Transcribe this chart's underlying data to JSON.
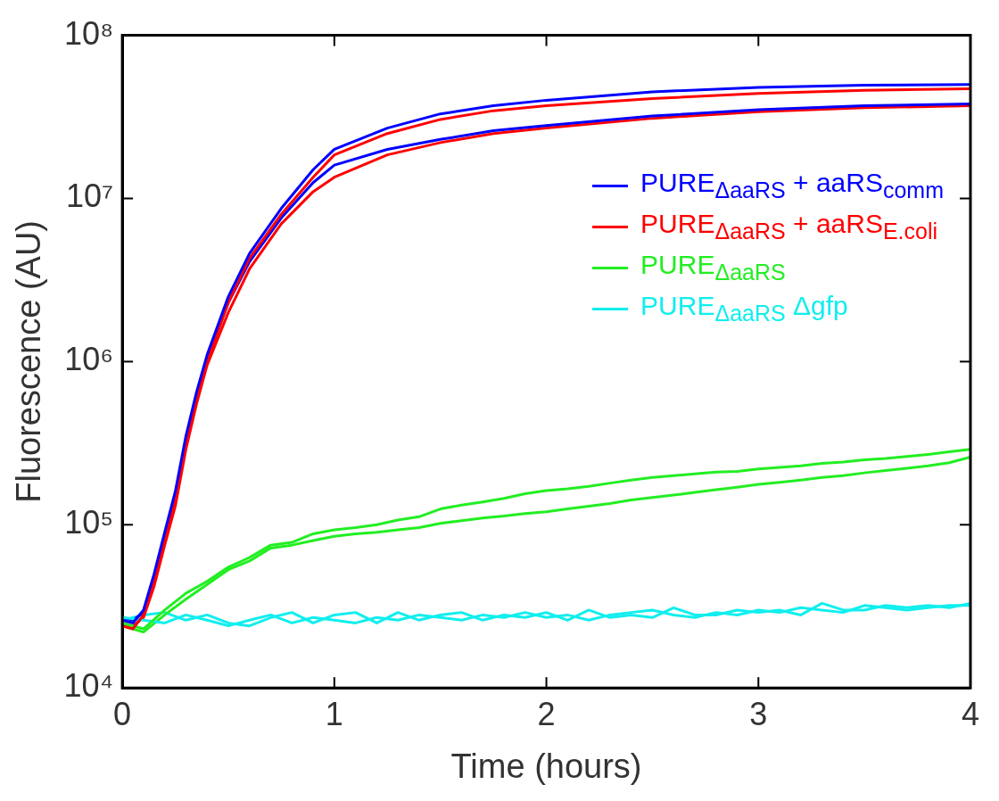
{
  "chart_data": {
    "type": "line",
    "xlabel": "Time (hours)",
    "ylabel": "Fluorescence (AU)",
    "x": [
      0,
      0.05,
      0.1,
      0.15,
      0.2,
      0.25,
      0.3,
      0.35,
      0.4,
      0.5,
      0.6,
      0.75,
      0.9,
      1,
      1.25,
      1.5,
      1.75,
      2,
      2.5,
      3,
      3.5,
      4
    ],
    "xlim": [
      0,
      4
    ],
    "xticks": [
      0,
      1,
      2,
      3,
      4
    ],
    "ylim": [
      10000,
      100000000
    ],
    "yticks": [
      {
        "value": 10000,
        "label": "10⁴"
      },
      {
        "value": 100000,
        "label": "10⁵"
      },
      {
        "value": 1000000,
        "label": "10⁶"
      },
      {
        "value": 10000000,
        "label": "10⁷"
      },
      {
        "value": 100000000,
        "label": "10⁸"
      }
    ],
    "log": "y",
    "grid": false,
    "legend": "right",
    "marker": "none",
    "line_style": "solid",
    "series": [
      {
        "name": "PURE$_{ΔaaRS}$ + aaRS$_{comm}$",
        "color": "#0000ff",
        "values": [
          26000,
          25000,
          30000,
          50000,
          90000,
          160000,
          350000,
          650000,
          1100000,
          2500000,
          4600000,
          8700000,
          15000000,
          20000000,
          27000000,
          33000000,
          37000000,
          40000000,
          45000000,
          48000000,
          49500000,
          50000000
        ]
      },
      {
        "name": "PURE$_{ΔaaRS}$ + aaRS$_{E.coli}$",
        "color": "#ff0000",
        "values": [
          24000,
          23000,
          28000,
          45000,
          80000,
          140000,
          310000,
          600000,
          1000000,
          2300000,
          4300000,
          8000000,
          13500000,
          18500000,
          25000000,
          30500000,
          34500000,
          37000000,
          41000000,
          44000000,
          46000000,
          47000000
        ]
      },
      {
        "name": "PURE$_{ΔaaRS}$",
        "color": "#22ee22",
        "x": [
          0,
          0.1,
          0.2,
          0.3,
          0.4,
          0.5,
          0.6,
          0.7,
          0.8,
          0.9,
          1,
          1.1,
          1.2,
          1.3,
          1.4,
          1.5,
          1.6,
          1.7,
          1.8,
          1.9,
          2,
          2.1,
          2.2,
          2.3,
          2.4,
          2.5,
          2.6,
          2.7,
          2.8,
          2.9,
          3,
          3.1,
          3.2,
          3.3,
          3.4,
          3.5,
          3.6,
          3.7,
          3.8,
          3.9,
          4
        ],
        "values": [
          25000,
          23000,
          30000,
          38000,
          45000,
          55000,
          63000,
          75000,
          78000,
          88000,
          93000,
          96000,
          100000,
          107000,
          112000,
          125000,
          132000,
          138000,
          145000,
          155000,
          162000,
          166000,
          172000,
          180000,
          188000,
          195000,
          200000,
          205000,
          210000,
          212000,
          220000,
          225000,
          230000,
          238000,
          242000,
          250000,
          255000,
          262000,
          270000,
          280000,
          290000
        ]
      },
      {
        "name": "PURE$_{ΔaaRS}$ Δgfp",
        "color": "#11eeee",
        "x": [
          0,
          0.1,
          0.2,
          0.3,
          0.4,
          0.5,
          0.6,
          0.7,
          0.8,
          0.9,
          1,
          1.1,
          1.2,
          1.3,
          1.4,
          1.5,
          1.6,
          1.7,
          1.8,
          1.9,
          2,
          2.1,
          2.2,
          2.3,
          2.4,
          2.5,
          2.6,
          2.7,
          2.8,
          2.9,
          3,
          3.1,
          3.2,
          3.3,
          3.4,
          3.5,
          3.6,
          3.7,
          3.8,
          3.9,
          4
        ],
        "values": [
          27000,
          26000,
          25000,
          28000,
          26000,
          24000,
          26000,
          28000,
          25000,
          27000,
          26000,
          25000,
          27000,
          26000,
          28000,
          27000,
          26000,
          28000,
          27000,
          29000,
          27000,
          28000,
          26000,
          28000,
          29000,
          30000,
          28000,
          27000,
          29000,
          28000,
          30000,
          29000,
          31000,
          30000,
          29000,
          32000,
          31000,
          30000,
          31000,
          32000,
          32000
        ]
      },
      {
        "color": "#0000ff",
        "values": [
          27000,
          26000,
          29000,
          48000,
          85000,
          150000,
          330000,
          620000,
          1050000,
          2300000,
          4100000,
          7600000,
          12500000,
          16000000,
          20000000,
          23000000,
          26000000,
          28000000,
          32000000,
          35000000,
          37000000,
          38000000
        ]
      },
      {
        "color": "#ff0000",
        "values": [
          25000,
          24000,
          27000,
          42000,
          75000,
          130000,
          290000,
          550000,
          950000,
          2000000,
          3700000,
          7000000,
          11000000,
          13500000,
          18500000,
          22000000,
          25000000,
          27000000,
          31000000,
          34000000,
          36000000,
          37000000
        ]
      },
      {
        "color": "#22ee22",
        "x": [
          0,
          0.1,
          0.2,
          0.3,
          0.4,
          0.5,
          0.6,
          0.7,
          0.8,
          0.9,
          1,
          1.1,
          1.2,
          1.3,
          1.4,
          1.5,
          1.6,
          1.7,
          1.8,
          1.9,
          2,
          2.1,
          2.2,
          2.3,
          2.4,
          2.5,
          2.6,
          2.7,
          2.8,
          2.9,
          3,
          3.1,
          3.2,
          3.3,
          3.4,
          3.5,
          3.6,
          3.7,
          3.8,
          3.9,
          4
        ],
        "values": [
          24000,
          22000,
          28000,
          35000,
          43000,
          53000,
          60000,
          72000,
          75000,
          80000,
          85000,
          88000,
          90000,
          93000,
          96000,
          102000,
          106000,
          110000,
          113000,
          117000,
          120000,
          125000,
          130000,
          135000,
          142000,
          147000,
          152000,
          158000,
          164000,
          170000,
          177000,
          182000,
          188000,
          195000,
          200000,
          208000,
          215000,
          222000,
          230000,
          240000,
          260000
        ]
      },
      {
        "color": "#11eeee",
        "x": [
          0,
          0.1,
          0.2,
          0.3,
          0.4,
          0.5,
          0.6,
          0.7,
          0.8,
          0.9,
          1,
          1.1,
          1.2,
          1.3,
          1.4,
          1.5,
          1.6,
          1.7,
          1.8,
          1.9,
          2,
          2.1,
          2.2,
          2.3,
          2.4,
          2.5,
          2.6,
          2.7,
          2.8,
          2.9,
          3,
          3.1,
          3.2,
          3.3,
          3.4,
          3.5,
          3.6,
          3.7,
          3.8,
          3.9,
          4
        ],
        "values": [
          26000,
          28000,
          29000,
          26000,
          28000,
          25000,
          24000,
          27000,
          29000,
          25000,
          28000,
          29000,
          25000,
          29000,
          26000,
          28000,
          29000,
          26000,
          28000,
          27000,
          29000,
          26000,
          30000,
          27000,
          28000,
          27000,
          31000,
          28000,
          28000,
          30000,
          29000,
          30000,
          28000,
          33000,
          30000,
          30000,
          32000,
          31000,
          32000,
          31000,
          33000
        ]
      }
    ]
  }
}
